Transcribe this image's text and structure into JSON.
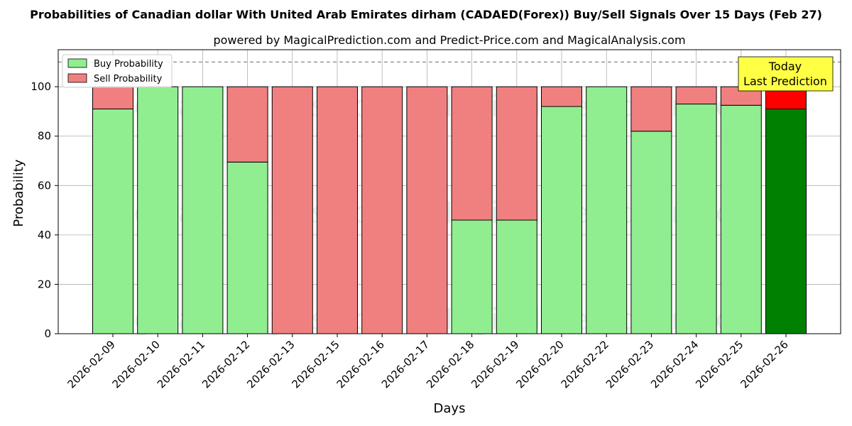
{
  "chart_data": {
    "type": "bar",
    "title": "Probabilities of Canadian dollar With United Arab Emirates dirham (CADAED(Forex)) Buy/Sell Signals Over 15 Days (Feb 27)",
    "subtitle": "powered by MagicalPrediction.com and Predict-Price.com and MagicalAnalysis.com",
    "xlabel": "Days",
    "ylabel": "Probability",
    "ylim": [
      0,
      115
    ],
    "yticks": [
      0,
      20,
      40,
      60,
      80,
      100
    ],
    "reference_line": 110,
    "grid": true,
    "legend_position": "top-left",
    "categories": [
      "2026-02-09",
      "2026-02-10",
      "2026-02-11",
      "2026-02-12",
      "2026-02-13",
      "2026-02-15",
      "2026-02-16",
      "2026-02-17",
      "2026-02-18",
      "2026-02-19",
      "2026-02-20",
      "2026-02-22",
      "2026-02-23",
      "2026-02-24",
      "2026-02-25",
      "2026-02-26"
    ],
    "series": [
      {
        "name": "Buy Probability",
        "color": "#90ee90",
        "values": [
          91,
          100,
          100,
          69.5,
          0,
          0,
          0,
          0,
          46,
          46,
          92,
          100,
          82,
          93,
          92.5,
          91
        ]
      },
      {
        "name": "Sell Probability",
        "color": "#f08080",
        "values": [
          9,
          0,
          0,
          30.5,
          100,
          100,
          100,
          100,
          54,
          54,
          8,
          0,
          18,
          7,
          7.5,
          9
        ]
      }
    ],
    "highlight": {
      "index": 15,
      "buy_color": "#008000",
      "sell_color": "#ff0000"
    },
    "annotation": {
      "line1": "Today",
      "line2": "Last Prediction",
      "color": "#ffff44"
    },
    "watermarks": [
      "MagicalAnalysis.com",
      "MagicalPrediction.com"
    ]
  }
}
